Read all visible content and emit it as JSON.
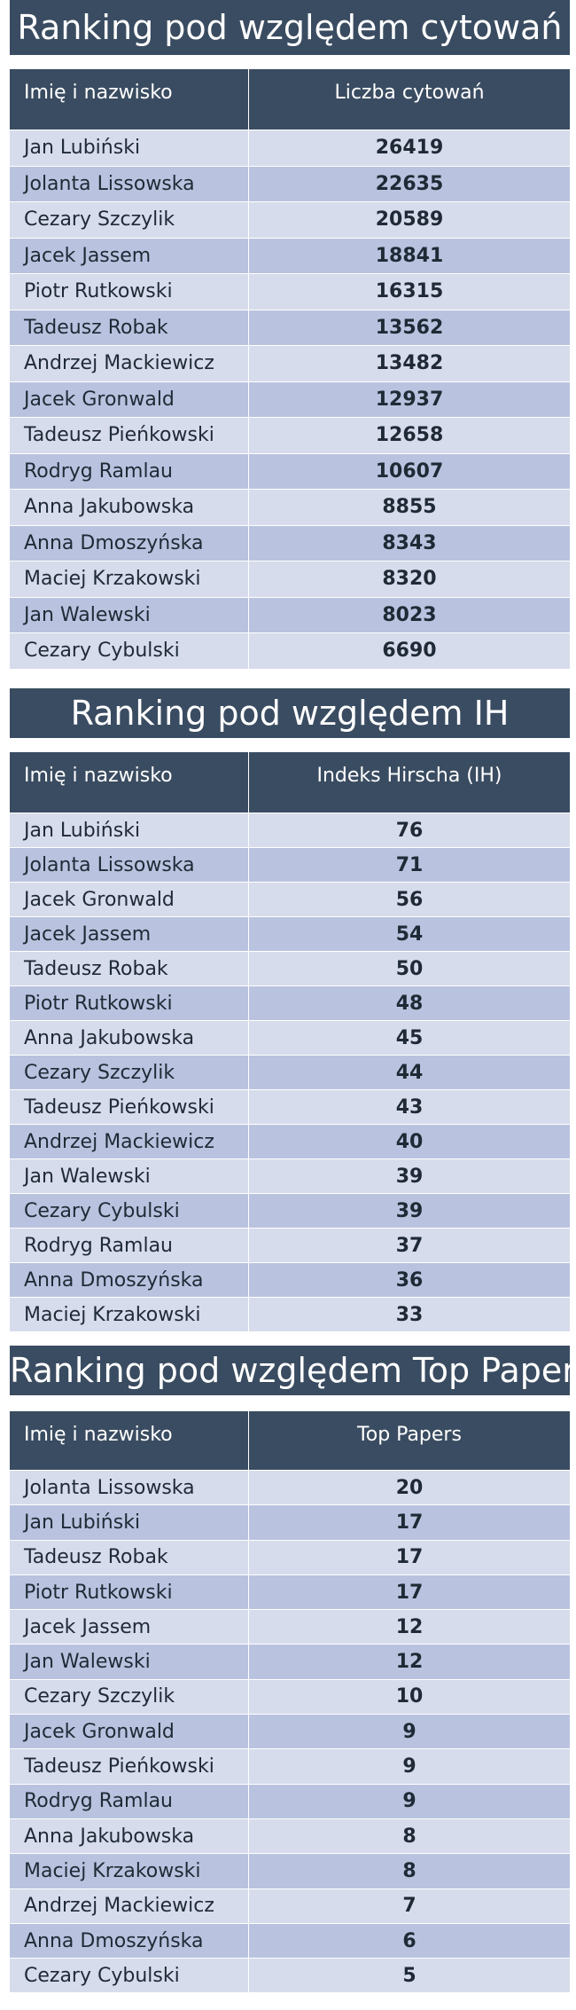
{
  "sections": [
    {
      "title": "Ranking pod względem cytowań",
      "col_name": "Imię i nazwisko",
      "col_value": "Liczba cytowań",
      "rows": [
        {
          "name": "Jan Lubiński",
          "value": "26419"
        },
        {
          "name": "Jolanta Lissowska",
          "value": "22635"
        },
        {
          "name": "Cezary Szczylik",
          "value": "20589"
        },
        {
          "name": "Jacek Jassem",
          "value": "18841"
        },
        {
          "name": "Piotr Rutkowski",
          "value": "16315"
        },
        {
          "name": "Tadeusz Robak",
          "value": "13562"
        },
        {
          "name": "Andrzej Mackiewicz",
          "value": "13482"
        },
        {
          "name": "Jacek Gronwald",
          "value": "12937"
        },
        {
          "name": "Tadeusz Pieńkowski",
          "value": "12658"
        },
        {
          "name": "Rodryg Ramlau",
          "value": "10607"
        },
        {
          "name": "Anna Jakubowska",
          "value": "8855"
        },
        {
          "name": "Anna Dmoszyńska",
          "value": "8343"
        },
        {
          "name": "Maciej Krzakowski",
          "value": "8320"
        },
        {
          "name": "Jan Walewski",
          "value": "8023"
        },
        {
          "name": "Cezary Cybulski",
          "value": "6690"
        }
      ]
    },
    {
      "title": "Ranking pod względem IH",
      "col_name": "Imię i nazwisko",
      "col_value": "Indeks Hirscha (IH)",
      "rows": [
        {
          "name": "Jan Lubiński",
          "value": "76"
        },
        {
          "name": "Jolanta Lissowska",
          "value": "71"
        },
        {
          "name": "Jacek Gronwald",
          "value": "56"
        },
        {
          "name": "Jacek Jassem",
          "value": "54"
        },
        {
          "name": "Tadeusz Robak",
          "value": "50"
        },
        {
          "name": "Piotr Rutkowski",
          "value": "48"
        },
        {
          "name": "Anna Jakubowska",
          "value": "45"
        },
        {
          "name": "Cezary Szczylik",
          "value": "44"
        },
        {
          "name": "Tadeusz Pieńkowski",
          "value": "43"
        },
        {
          "name": "Andrzej Mackiewicz",
          "value": "40"
        },
        {
          "name": "Jan Walewski",
          "value": "39"
        },
        {
          "name": "Cezary Cybulski",
          "value": "39"
        },
        {
          "name": "Rodryg Ramlau",
          "value": "37"
        },
        {
          "name": "Anna Dmoszyńska",
          "value": "36"
        },
        {
          "name": "Maciej Krzakowski",
          "value": "33"
        }
      ]
    },
    {
      "title": "Ranking pod względem Top Papers",
      "col_name": "Imię i nazwisko",
      "col_value": "Top Papers",
      "rows": [
        {
          "name": "Jolanta Lissowska",
          "value": "20"
        },
        {
          "name": "Jan Lubiński",
          "value": "17"
        },
        {
          "name": "Tadeusz Robak",
          "value": "17"
        },
        {
          "name": "Piotr Rutkowski",
          "value": "17"
        },
        {
          "name": "Jacek Jassem",
          "value": "12"
        },
        {
          "name": "Jan Walewski",
          "value": "12"
        },
        {
          "name": "Cezary Szczylik",
          "value": "10"
        },
        {
          "name": "Jacek Gronwald",
          "value": "9"
        },
        {
          "name": "Tadeusz Pieńkowski",
          "value": "9"
        },
        {
          "name": "Rodryg Ramlau",
          "value": "9"
        },
        {
          "name": "Anna Jakubowska",
          "value": "8"
        },
        {
          "name": "Maciej Krzakowski",
          "value": "8"
        },
        {
          "name": "Andrzej Mackiewicz",
          "value": "7"
        },
        {
          "name": "Anna Dmoszyńska",
          "value": "6"
        },
        {
          "name": "Cezary Cybulski",
          "value": "5"
        }
      ]
    }
  ]
}
